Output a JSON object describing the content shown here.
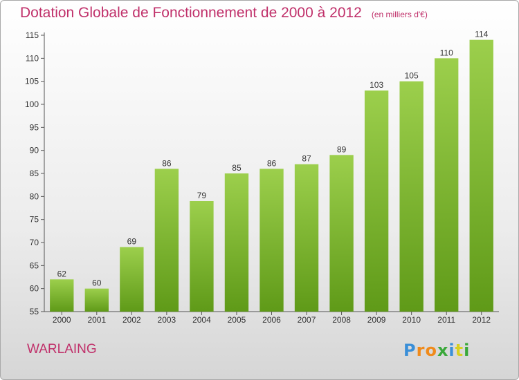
{
  "chart_data": {
    "type": "bar",
    "title": "Dotation Globale de Fonctionnement de 2000 à 2012",
    "subtitle": "(en milliers d'€)",
    "categories": [
      "2000",
      "2001",
      "2002",
      "2003",
      "2004",
      "2005",
      "2006",
      "2007",
      "2008",
      "2009",
      "2010",
      "2011",
      "2012"
    ],
    "values": [
      62,
      60,
      69,
      86,
      79,
      85,
      86,
      87,
      89,
      103,
      105,
      110,
      114
    ],
    "ylim": [
      55,
      115
    ],
    "yticks": [
      55,
      60,
      65,
      70,
      75,
      80,
      85,
      90,
      95,
      100,
      105,
      110,
      115
    ],
    "grid": false,
    "bar_color": "#7ab82e"
  },
  "footer": {
    "commune": "WARLAING",
    "logo": "Proxiti"
  }
}
